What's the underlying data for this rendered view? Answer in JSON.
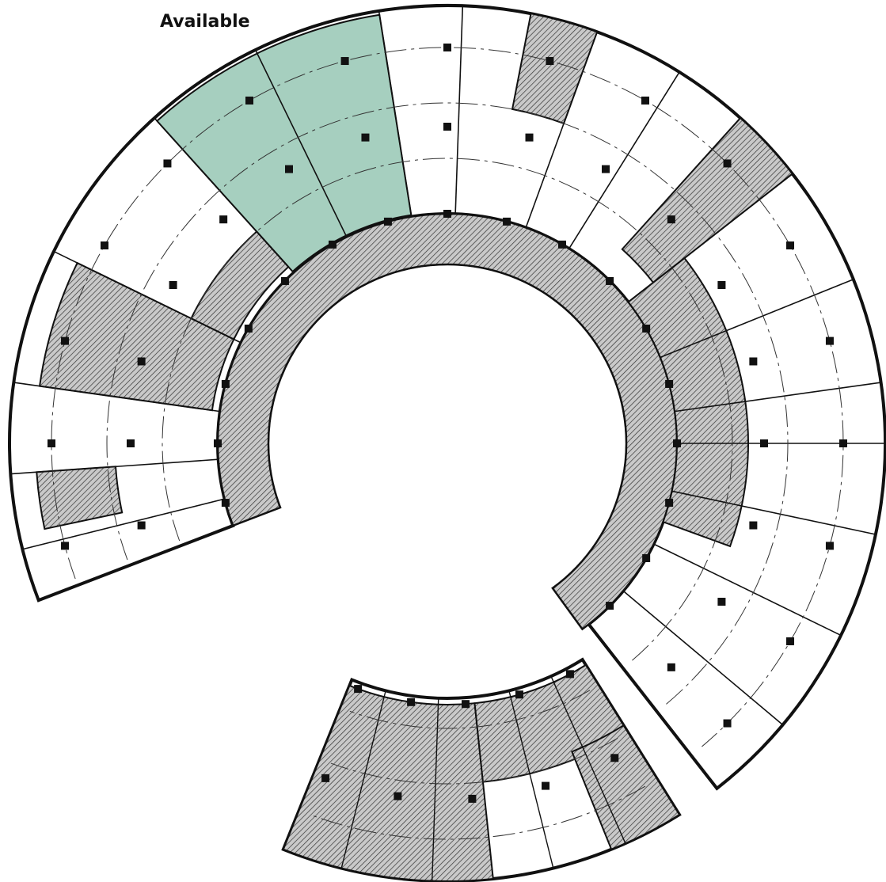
{
  "labels": {
    "status": "Available"
  }
}
